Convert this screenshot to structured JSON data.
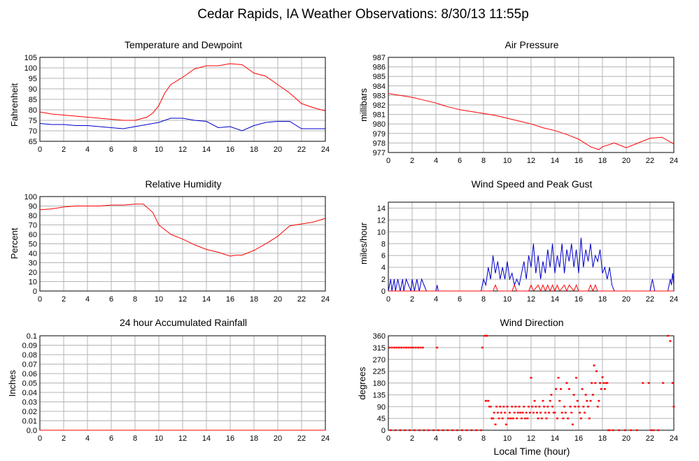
{
  "title": "Cedar Rapids, IA Weather Observations: 8/30/13 11:55p",
  "xlabel": "Local Time (hour)",
  "colors": {
    "series_a": "#ff0000",
    "series_b": "#0000cc",
    "grid": "#b4b4b4"
  },
  "chart_data": [
    {
      "type": "line",
      "title": "Temperature and Dewpoint",
      "ylabel": "Fahrenheit",
      "xlim": [
        0,
        24
      ],
      "ylim": [
        65,
        105
      ],
      "xticks": [
        0,
        2,
        4,
        6,
        8,
        10,
        12,
        14,
        16,
        18,
        20,
        22,
        24
      ],
      "yticks": [
        65,
        70,
        75,
        80,
        85,
        90,
        95,
        100,
        105
      ],
      "grid": true,
      "series": [
        {
          "color": "red",
          "x": [
            0,
            1,
            2,
            3,
            4,
            5,
            6,
            7,
            8,
            9,
            9.5,
            10,
            10.5,
            11,
            12,
            13,
            14,
            15,
            16,
            17,
            18,
            19,
            20,
            21,
            22,
            23,
            24
          ],
          "y": [
            79,
            78,
            77.5,
            77,
            76.5,
            76,
            75.5,
            75,
            75,
            76.5,
            78.5,
            82,
            88,
            92,
            95.5,
            99.5,
            101,
            101,
            102,
            101.5,
            97.5,
            96,
            92,
            88,
            83,
            81,
            79.5
          ]
        },
        {
          "color": "blue",
          "x": [
            0,
            1,
            2,
            3,
            4,
            5,
            6,
            7,
            8,
            9,
            10,
            11,
            12,
            13,
            14,
            15,
            16,
            17,
            18,
            19,
            20,
            21,
            22,
            23,
            24
          ],
          "y": [
            73.5,
            73,
            73,
            72.5,
            72.5,
            72,
            71.5,
            71,
            72,
            73,
            74,
            76,
            76,
            75,
            74.5,
            71.5,
            72,
            70,
            72.5,
            74,
            74.5,
            74.5,
            71,
            71,
            71
          ]
        }
      ]
    },
    {
      "type": "line",
      "title": "Air Pressure",
      "ylabel": "millibars",
      "xlim": [
        0,
        24
      ],
      "ylim": [
        977,
        987
      ],
      "xticks": [
        0,
        2,
        4,
        6,
        8,
        10,
        12,
        14,
        16,
        18,
        20,
        22,
        24
      ],
      "yticks": [
        977,
        978,
        979,
        980,
        981,
        982,
        983,
        984,
        985,
        986,
        987
      ],
      "grid": true,
      "series": [
        {
          "color": "red",
          "x": [
            0,
            1,
            2,
            3,
            4,
            5,
            6,
            7,
            8,
            9,
            10,
            11,
            12,
            13,
            14,
            15,
            16,
            17,
            17.7,
            18,
            19,
            20,
            21,
            22,
            23,
            24
          ],
          "y": [
            983.2,
            983,
            982.8,
            982.5,
            982.2,
            981.8,
            981.5,
            981.3,
            981.1,
            980.9,
            980.6,
            980.3,
            980,
            979.6,
            979.3,
            978.9,
            978.4,
            977.6,
            977.3,
            977.6,
            978,
            977.5,
            978,
            978.5,
            978.6,
            977.9
          ]
        }
      ]
    },
    {
      "type": "line",
      "title": "Relative Humidity",
      "ylabel": "Percent",
      "xlim": [
        0,
        24
      ],
      "ylim": [
        0,
        100
      ],
      "xticks": [
        0,
        2,
        4,
        6,
        8,
        10,
        12,
        14,
        16,
        18,
        20,
        22,
        24
      ],
      "yticks": [
        0,
        10,
        20,
        30,
        40,
        50,
        60,
        70,
        80,
        90,
        100
      ],
      "grid": true,
      "series": [
        {
          "color": "red",
          "x": [
            0,
            1,
            2,
            3,
            4,
            5,
            6,
            7,
            8,
            8.7,
            9.5,
            10,
            11,
            12,
            13,
            14,
            15,
            16,
            16.5,
            17,
            18,
            19,
            20,
            21,
            22,
            23,
            24
          ],
          "y": [
            86,
            87,
            89,
            90,
            90,
            90,
            91,
            91,
            92,
            92,
            83,
            70,
            60,
            55,
            49,
            44,
            41,
            37,
            38,
            38,
            43,
            50,
            58,
            69,
            71,
            73,
            77
          ]
        }
      ]
    },
    {
      "type": "line",
      "title": "Wind Speed and Peak Gust",
      "ylabel": "miles/hour",
      "xlim": [
        0,
        24
      ],
      "ylim": [
        0,
        15
      ],
      "xticks": [
        0,
        2,
        4,
        6,
        8,
        10,
        12,
        14,
        16,
        18,
        20,
        22,
        24
      ],
      "yticks": [
        0,
        2,
        4,
        6,
        8,
        10,
        12,
        14
      ],
      "grid": true,
      "series": [
        {
          "color": "blue",
          "x": [
            0,
            0.2,
            0.3,
            0.5,
            0.6,
            0.8,
            1,
            1.2,
            1.3,
            1.5,
            1.7,
            1.9,
            2,
            2.2,
            2.4,
            2.6,
            2.8,
            3,
            3.2,
            4,
            4.1,
            4.2,
            7.8,
            8,
            8.2,
            8.4,
            8.6,
            8.8,
            9,
            9.2,
            9.4,
            9.6,
            9.8,
            10,
            10.2,
            10.4,
            10.6,
            10.8,
            11,
            11.2,
            11.4,
            11.6,
            11.8,
            12,
            12.2,
            12.4,
            12.6,
            12.8,
            13,
            13.2,
            13.4,
            13.6,
            13.8,
            14,
            14.2,
            14.4,
            14.6,
            14.8,
            15,
            15.2,
            15.4,
            15.6,
            15.8,
            16,
            16.2,
            16.4,
            16.6,
            16.8,
            17,
            17.2,
            17.4,
            17.6,
            17.8,
            18,
            18.2,
            18.4,
            18.6,
            18.8,
            19,
            22,
            22.2,
            22.4,
            23.5,
            23.7,
            23.8,
            23.9,
            24
          ],
          "y": [
            0,
            2,
            0,
            2,
            0,
            2,
            0,
            2,
            0,
            2,
            1,
            0,
            2,
            0,
            2,
            0,
            2,
            1,
            0,
            0,
            1,
            0,
            0,
            2,
            1,
            4,
            2,
            6,
            3,
            5,
            2,
            4,
            2,
            5,
            2,
            3,
            1,
            2,
            1,
            3,
            5,
            2,
            6,
            4,
            8,
            3,
            6,
            2,
            5,
            3,
            7,
            4,
            8,
            3,
            6,
            4,
            8,
            3,
            7,
            5,
            8,
            4,
            7,
            3,
            9,
            4,
            7,
            5,
            8,
            4,
            6,
            5,
            7,
            3,
            4,
            2,
            4,
            1,
            0,
            0,
            2,
            0,
            0,
            2,
            1,
            3,
            1
          ]
        },
        {
          "color": "red",
          "x": [
            0,
            8.8,
            9,
            9.2,
            10.4,
            10.6,
            10.8,
            11.8,
            12,
            12.2,
            12.6,
            12.8,
            13,
            13.2,
            13.4,
            13.6,
            13.8,
            14,
            14.2,
            14.4,
            14.8,
            15,
            15.2,
            15.6,
            15.8,
            16,
            16.8,
            17,
            17.2,
            17.4,
            17.6,
            17.8,
            24
          ],
          "y": [
            0,
            0,
            1,
            0,
            0,
            1,
            0,
            0,
            1,
            0,
            1,
            0,
            1,
            0,
            1,
            0,
            1,
            0,
            1,
            0,
            1,
            0,
            1,
            0,
            1,
            0,
            0,
            1,
            0,
            1,
            0,
            0,
            0
          ]
        }
      ]
    },
    {
      "type": "line",
      "title": "24 hour Accumulated Rainfall",
      "ylabel": "Inches",
      "xlim": [
        0,
        24
      ],
      "ylim": [
        0,
        0.1
      ],
      "xticks": [
        0,
        2,
        4,
        6,
        8,
        10,
        12,
        14,
        16,
        18,
        20,
        22,
        24
      ],
      "yticks": [
        "0.0",
        "0.01",
        "0.02",
        "0.03",
        "0.04",
        "0.05",
        "0.06",
        "0.07",
        "0.08",
        "0.09",
        "0.1"
      ],
      "grid": true,
      "series": [
        {
          "color": "red",
          "x": [
            0,
            24
          ],
          "y": [
            0,
            0
          ]
        }
      ]
    },
    {
      "type": "scatter",
      "title": "Wind Direction",
      "ylabel": "degrees",
      "xlim": [
        0,
        24
      ],
      "ylim": [
        0,
        360
      ],
      "xticks": [
        0,
        2,
        4,
        6,
        8,
        10,
        12,
        14,
        16,
        18,
        20,
        22,
        24
      ],
      "yticks": [
        0,
        45,
        90,
        135,
        180,
        225,
        270,
        315,
        360
      ],
      "grid": true,
      "series": [
        {
          "color": "red",
          "x": [
            0.1,
            0.3,
            0.5,
            0.7,
            0.9,
            1.1,
            1.3,
            1.5,
            1.7,
            1.9,
            2.1,
            2.3,
            2.5,
            2.7,
            2.9,
            4.1,
            7.9,
            8.1,
            8.2,
            8.3,
            0.2,
            0.6,
            1,
            1.4,
            1.8,
            2.2,
            2.6,
            3,
            3.4,
            3.8,
            4.2,
            4.6,
            5,
            5.4,
            5.8,
            6.2,
            6.6,
            7,
            7.4,
            7.8,
            8.2,
            8.4,
            8.5,
            8.6,
            8.7,
            8.8,
            8.9,
            9,
            9.1,
            9.2,
            9.3,
            9.4,
            9.5,
            9.6,
            9.7,
            9.8,
            9.9,
            10,
            10.1,
            10.2,
            10.3,
            10.4,
            10.5,
            10.6,
            10.7,
            10.8,
            10.9,
            11,
            11.1,
            11.2,
            11.3,
            11.4,
            11.5,
            11.6,
            11.7,
            11.8,
            11.9,
            12,
            12.1,
            12.2,
            12.3,
            12.4,
            12.5,
            12.6,
            12.7,
            12.8,
            12.9,
            13,
            13.1,
            13.2,
            13.3,
            13.4,
            13.5,
            13.6,
            13.7,
            13.8,
            13.9,
            14,
            14.1,
            14.2,
            14.3,
            14.4,
            14.5,
            14.6,
            14.7,
            14.8,
            14.9,
            15,
            15.1,
            15.2,
            15.3,
            15.4,
            15.5,
            15.6,
            15.7,
            15.8,
            15.9,
            16,
            16.1,
            16.2,
            16.3,
            16.4,
            16.5,
            16.6,
            16.7,
            16.8,
            16.9,
            17,
            17.1,
            17.2,
            17.3,
            17.4,
            17.5,
            17.6,
            17.7,
            17.8,
            17.9,
            18,
            18.1,
            18.2,
            18.3,
            18.4,
            18.5,
            18.6,
            18.9,
            19.4,
            19.9,
            20.4,
            20.9,
            21.4,
            21.9,
            22.1,
            22.3,
            22.7,
            23.1,
            23.5,
            23.7,
            23.9,
            24
          ],
          "y": [
            315,
            315,
            315,
            315,
            315,
            315,
            315,
            315,
            315,
            315,
            315,
            315,
            315,
            315,
            315,
            315,
            315,
            360,
            360,
            360,
            0,
            0,
            0,
            0,
            0,
            0,
            0,
            0,
            0,
            0,
            0,
            0,
            0,
            0,
            0,
            0,
            0,
            0,
            0,
            0,
            112,
            112,
            90,
            90,
            45,
            45,
            67,
            22,
            90,
            67,
            45,
            90,
            67,
            45,
            90,
            67,
            22,
            90,
            45,
            67,
            45,
            90,
            45,
            67,
            90,
            45,
            67,
            90,
            67,
            45,
            67,
            90,
            45,
            67,
            45,
            90,
            67,
            200,
            90,
            67,
            112,
            90,
            67,
            45,
            90,
            67,
            45,
            112,
            90,
            67,
            45,
            90,
            67,
            112,
            135,
            90,
            67,
            67,
            157,
            45,
            200,
            112,
            157,
            67,
            45,
            90,
            67,
            180,
            45,
            157,
            90,
            67,
            22,
            135,
            90,
            200,
            112,
            90,
            67,
            45,
            157,
            90,
            67,
            135,
            112,
            90,
            45,
            112,
            180,
            135,
            247,
            180,
            225,
            90,
            112,
            180,
            157,
            202,
            180,
            157,
            180,
            180,
            0,
            0,
            0,
            0,
            0,
            0,
            0,
            180,
            180,
            0,
            0,
            0,
            180,
            360,
            340,
            180,
            90
          ]
        }
      ]
    }
  ]
}
